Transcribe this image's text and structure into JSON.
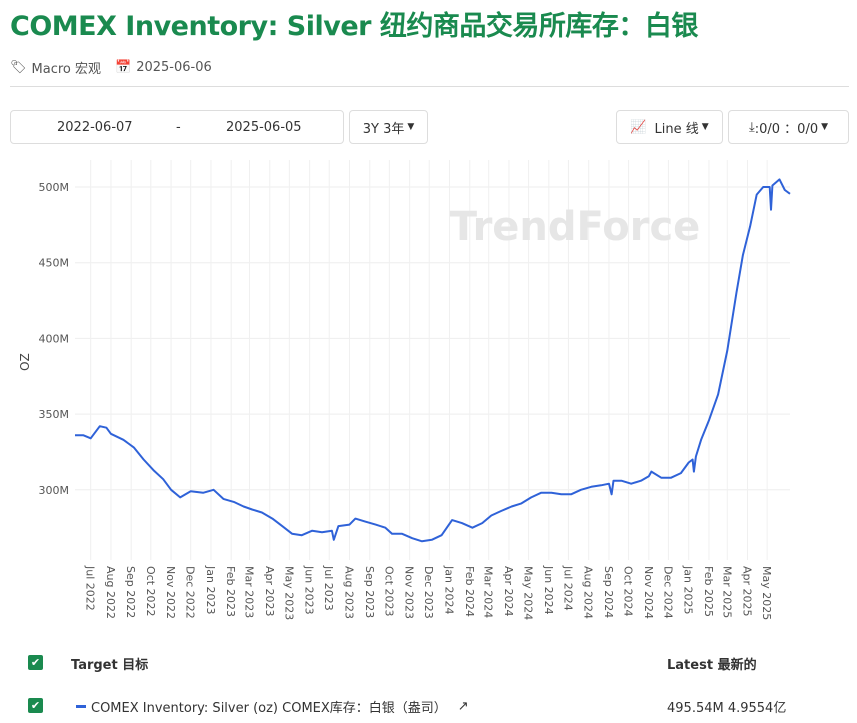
{
  "title": "COMEX Inventory: Silver 纽约商品交易所库存：白银",
  "meta": {
    "category": "Macro 宏观",
    "date": "2025-06-06"
  },
  "controls": {
    "start_date": "2022-06-07",
    "separator": "-",
    "end_date": "2025-06-05",
    "range": "3Y 3年",
    "chart_type": "Line 线",
    "download": ":0/0 ：0/0"
  },
  "watermark": "TrendForce",
  "legend": {
    "target_header": "Target 目标",
    "latest_header": "Latest 最新的",
    "rows": [
      {
        "name": "COMEX Inventory: Silver (oz) COMEX库存：白银（盎司）",
        "latest": "495.54M 4.9554亿",
        "color": "#2f62d8"
      }
    ]
  },
  "chart_data": {
    "type": "line",
    "title": "",
    "xlabel": "",
    "ylabel": "OZ",
    "ylim": [
      255,
      507
    ],
    "yticks": [
      {
        "v": 300,
        "label": "300M"
      },
      {
        "v": 350,
        "label": "350M"
      },
      {
        "v": 400,
        "label": "400M"
      },
      {
        "v": 450,
        "label": "450M"
      },
      {
        "v": 500,
        "label": "500M"
      }
    ],
    "xticks": [
      "Jul 2022",
      "Aug 2022",
      "Sep 2022",
      "Oct 2022",
      "Nov 2022",
      "Dec 2022",
      "Jan 2023",
      "Feb 2023",
      "Mar 2023",
      "Apr 2023",
      "May 2023",
      "Jun 2023",
      "Jul 2023",
      "Aug 2023",
      "Sep 2023",
      "Oct 2023",
      "Nov 2023",
      "Dec 2023",
      "Jan 2024",
      "Feb 2024",
      "Mar 2024",
      "Apr 2024",
      "May 2024",
      "Jun 2024",
      "Jul 2024",
      "Aug 2024",
      "Sep 2024",
      "Oct 2024",
      "Nov 2024",
      "Dec 2024",
      "Jan 2025",
      "Feb 2025",
      "Mar 2025",
      "Apr 2025",
      "May 2025"
    ],
    "xrange": [
      "2022-06-07",
      "2025-06-05"
    ],
    "series": [
      {
        "name": "COMEX Inventory: Silver (oz)",
        "color": "#2f62d8",
        "points": [
          [
            "2022-06-07",
            336
          ],
          [
            "2022-06-20",
            336
          ],
          [
            "2022-07-01",
            334
          ],
          [
            "2022-07-15",
            342
          ],
          [
            "2022-07-25",
            341
          ],
          [
            "2022-08-01",
            337
          ],
          [
            "2022-08-20",
            333
          ],
          [
            "2022-09-05",
            328
          ],
          [
            "2022-09-20",
            320
          ],
          [
            "2022-10-05",
            313
          ],
          [
            "2022-10-20",
            307
          ],
          [
            "2022-11-01",
            300
          ],
          [
            "2022-11-15",
            295
          ],
          [
            "2022-12-01",
            299
          ],
          [
            "2022-12-20",
            298
          ],
          [
            "2023-01-05",
            300
          ],
          [
            "2023-01-20",
            294
          ],
          [
            "2023-02-05",
            292
          ],
          [
            "2023-02-20",
            289
          ],
          [
            "2023-03-05",
            287
          ],
          [
            "2023-03-20",
            285
          ],
          [
            "2023-04-05",
            281
          ],
          [
            "2023-04-20",
            276
          ],
          [
            "2023-05-05",
            271
          ],
          [
            "2023-05-20",
            270
          ],
          [
            "2023-06-05",
            273
          ],
          [
            "2023-06-20",
            272
          ],
          [
            "2023-07-05",
            273
          ],
          [
            "2023-07-08",
            267
          ],
          [
            "2023-07-15",
            276
          ],
          [
            "2023-08-01",
            277
          ],
          [
            "2023-08-10",
            281
          ],
          [
            "2023-08-25",
            279
          ],
          [
            "2023-09-10",
            277
          ],
          [
            "2023-09-25",
            275
          ],
          [
            "2023-10-05",
            271
          ],
          [
            "2023-10-20",
            271
          ],
          [
            "2023-11-05",
            268
          ],
          [
            "2023-11-20",
            266
          ],
          [
            "2023-12-05",
            267
          ],
          [
            "2023-12-20",
            270
          ],
          [
            "2024-01-05",
            280
          ],
          [
            "2024-01-20",
            278
          ],
          [
            "2024-02-05",
            275
          ],
          [
            "2024-02-20",
            278
          ],
          [
            "2024-03-05",
            283
          ],
          [
            "2024-03-20",
            286
          ],
          [
            "2024-04-05",
            289
          ],
          [
            "2024-04-20",
            291
          ],
          [
            "2024-05-05",
            295
          ],
          [
            "2024-05-20",
            298
          ],
          [
            "2024-06-05",
            298
          ],
          [
            "2024-06-20",
            297
          ],
          [
            "2024-07-05",
            297
          ],
          [
            "2024-07-20",
            300
          ],
          [
            "2024-08-05",
            302
          ],
          [
            "2024-08-20",
            303
          ],
          [
            "2024-09-01",
            304
          ],
          [
            "2024-09-05",
            297
          ],
          [
            "2024-09-08",
            306
          ],
          [
            "2024-09-20",
            306
          ],
          [
            "2024-10-05",
            304
          ],
          [
            "2024-10-20",
            306
          ],
          [
            "2024-11-01",
            309
          ],
          [
            "2024-11-05",
            312
          ],
          [
            "2024-11-20",
            308
          ],
          [
            "2024-12-05",
            308
          ],
          [
            "2024-12-20",
            311
          ],
          [
            "2025-01-01",
            318
          ],
          [
            "2025-01-07",
            320
          ],
          [
            "2025-01-09",
            312
          ],
          [
            "2025-01-12",
            322
          ],
          [
            "2025-01-20",
            333
          ],
          [
            "2025-02-01",
            346
          ],
          [
            "2025-02-15",
            363
          ],
          [
            "2025-03-01",
            392
          ],
          [
            "2025-03-15",
            430
          ],
          [
            "2025-03-25",
            455
          ],
          [
            "2025-04-05",
            474
          ],
          [
            "2025-04-15",
            495
          ],
          [
            "2025-04-25",
            500
          ],
          [
            "2025-05-05",
            500
          ],
          [
            "2025-05-07",
            485
          ],
          [
            "2025-05-09",
            501
          ],
          [
            "2025-05-20",
            505
          ],
          [
            "2025-05-28",
            498
          ],
          [
            "2025-06-05",
            495.5
          ]
        ]
      }
    ]
  }
}
